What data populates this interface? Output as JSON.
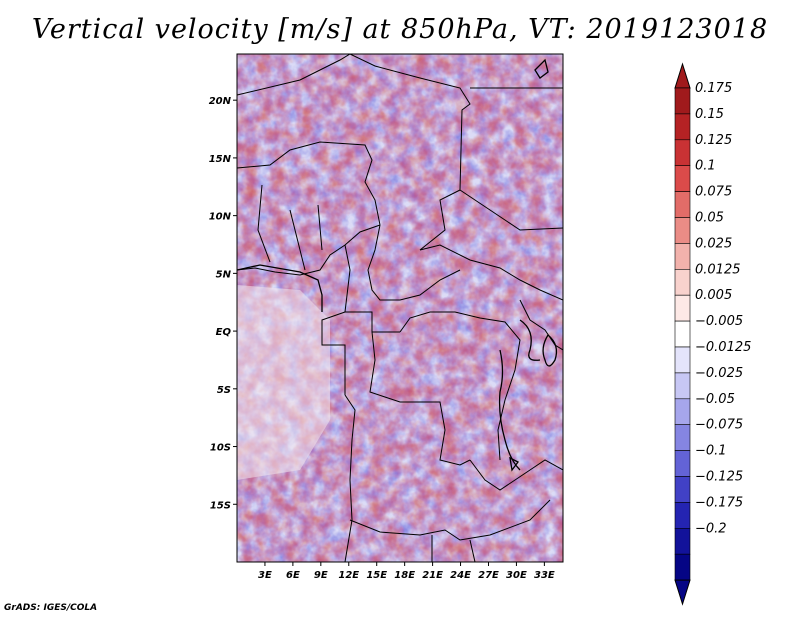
{
  "chart_data": {
    "type": "heatmap",
    "title": "Vertical velocity [m/s] at 850hPa, VT: 2019123018",
    "variable": "Vertical velocity",
    "units": "m/s",
    "level": "850hPa",
    "valid_time": "2019123018",
    "lon_range": [
      0,
      35
    ],
    "lat_range": [
      -20,
      24
    ],
    "x_ticks": [
      {
        "value": 3,
        "label": "3E"
      },
      {
        "value": 6,
        "label": "6E"
      },
      {
        "value": 9,
        "label": "9E"
      },
      {
        "value": 12,
        "label": "12E"
      },
      {
        "value": 15,
        "label": "15E"
      },
      {
        "value": 18,
        "label": "18E"
      },
      {
        "value": 21,
        "label": "21E"
      },
      {
        "value": 24,
        "label": "24E"
      },
      {
        "value": 27,
        "label": "27E"
      },
      {
        "value": 30,
        "label": "30E"
      },
      {
        "value": 33,
        "label": "33E"
      }
    ],
    "y_ticks": [
      {
        "value": 20,
        "label": "20N"
      },
      {
        "value": 15,
        "label": "15N"
      },
      {
        "value": 10,
        "label": "10N"
      },
      {
        "value": 5,
        "label": "5N"
      },
      {
        "value": 0,
        "label": "EQ"
      },
      {
        "value": -5,
        "label": "5S"
      },
      {
        "value": -10,
        "label": "10S"
      },
      {
        "value": -15,
        "label": "15S"
      }
    ],
    "colorbar": {
      "labels": [
        "0.175",
        "0.15",
        "0.125",
        "0.1",
        "0.075",
        "0.05",
        "0.025",
        "0.0125",
        "0.005",
        "−0.005",
        "−0.0125",
        "−0.025",
        "−0.05",
        "−0.075",
        "−0.1",
        "−0.125",
        "−0.175",
        "−0.2"
      ],
      "colors": [
        "#a01a1c",
        "#b52224",
        "#c93234",
        "#db4b4a",
        "#e26c68",
        "#ea8c86",
        "#f2b2ac",
        "#f8d2cd",
        "#fde9e6",
        "#ffffff",
        "#e4e4fb",
        "#c7c7f4",
        "#a6a6ec",
        "#8585e2",
        "#6363d6",
        "#4141c6",
        "#2424b2",
        "#12129a",
        "#050585"
      ],
      "top_arrow_color": "#a01a1c",
      "bottom_arrow_color": "#050585"
    }
  },
  "footer": {
    "credit": "GrADS: IGES/COLA"
  }
}
